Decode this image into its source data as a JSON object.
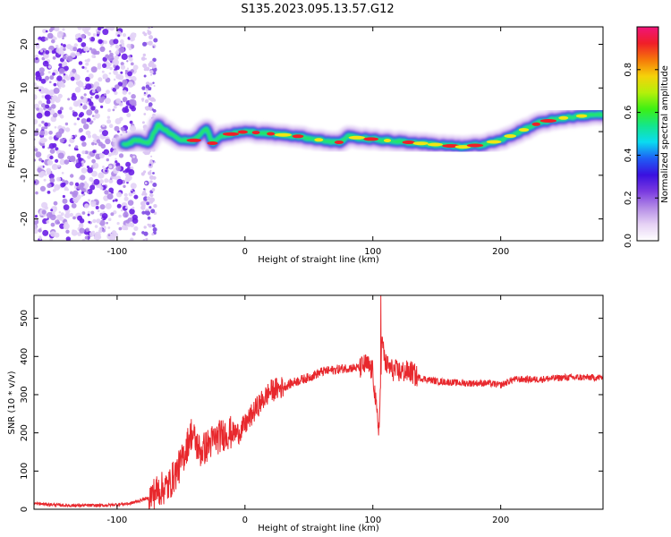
{
  "title": "S135.2023.095.13.57.G12",
  "chart_data": [
    {
      "type": "heatmap",
      "xlabel": "Height of straight line (km)",
      "ylabel": "Frequency (Hz)",
      "xlim": [
        -165,
        280
      ],
      "ylim": [
        -25,
        24
      ],
      "xticks": [
        -100,
        0,
        100,
        200
      ],
      "yticks": [
        20,
        10,
        0,
        -10,
        -20
      ],
      "ridge": {
        "x": [
          -95,
          -85,
          -75,
          -68,
          -60,
          -50,
          -40,
          -30,
          -25,
          -20,
          -10,
          0,
          20,
          40,
          60,
          75,
          80,
          90,
          110,
          130,
          150,
          170,
          185,
          200,
          215,
          230,
          245,
          260,
          280
        ],
        "y": [
          -3,
          -2,
          -2.5,
          1.5,
          0,
          -2,
          -2,
          1,
          -3,
          -1,
          -0.5,
          0,
          -0.5,
          -1,
          -2,
          -2.5,
          -1,
          -1.5,
          -2,
          -2.5,
          -3,
          -3.5,
          -3,
          -2,
          0,
          2,
          3,
          3.5,
          4
        ]
      }
    },
    {
      "type": "line",
      "xlabel": "Height of straight line (km)",
      "ylabel": "SNR (10 * v/v)",
      "xlim": [
        -165,
        280
      ],
      "ylim": [
        0,
        560
      ],
      "xticks": [
        -100,
        0,
        100,
        200
      ],
      "yticks": [
        0,
        100,
        200,
        300,
        400,
        500
      ],
      "series": [
        {
          "color": "#e8282d",
          "x": [
            -165,
            -140,
            -110,
            -90,
            -75,
            -68,
            -60,
            -50,
            -42,
            -35,
            -25,
            -15,
            -5,
            0,
            10,
            20,
            30,
            40,
            50,
            60,
            70,
            80,
            90,
            95,
            100,
            103,
            105,
            107,
            110,
            115,
            120,
            125,
            130,
            135,
            150,
            170,
            190,
            200,
            210,
            230,
            250,
            280
          ],
          "y": [
            15,
            10,
            10,
            15,
            30,
            50,
            60,
            120,
            200,
            150,
            180,
            200,
            200,
            220,
            270,
            310,
            320,
            335,
            345,
            360,
            365,
            370,
            370,
            380,
            360,
            250,
            210,
            440,
            380,
            365,
            360,
            360,
            360,
            345,
            335,
            330,
            330,
            325,
            340,
            340,
            345,
            345
          ]
        }
      ]
    }
  ],
  "colorbar": {
    "label": "Normalized spectral amplitude",
    "ticks": [
      "0.0",
      "0.2",
      "0.4",
      "0.6",
      "0.8"
    ],
    "stops": [
      "#ffffff",
      "#e6d2f5",
      "#b48ce6",
      "#7a3ae0",
      "#3a10e0",
      "#1e5ef5",
      "#0adcf0",
      "#14e68c",
      "#3cf014",
      "#b4f00a",
      "#f5d20a",
      "#f5780a",
      "#f01e28",
      "#f0147a"
    ]
  }
}
